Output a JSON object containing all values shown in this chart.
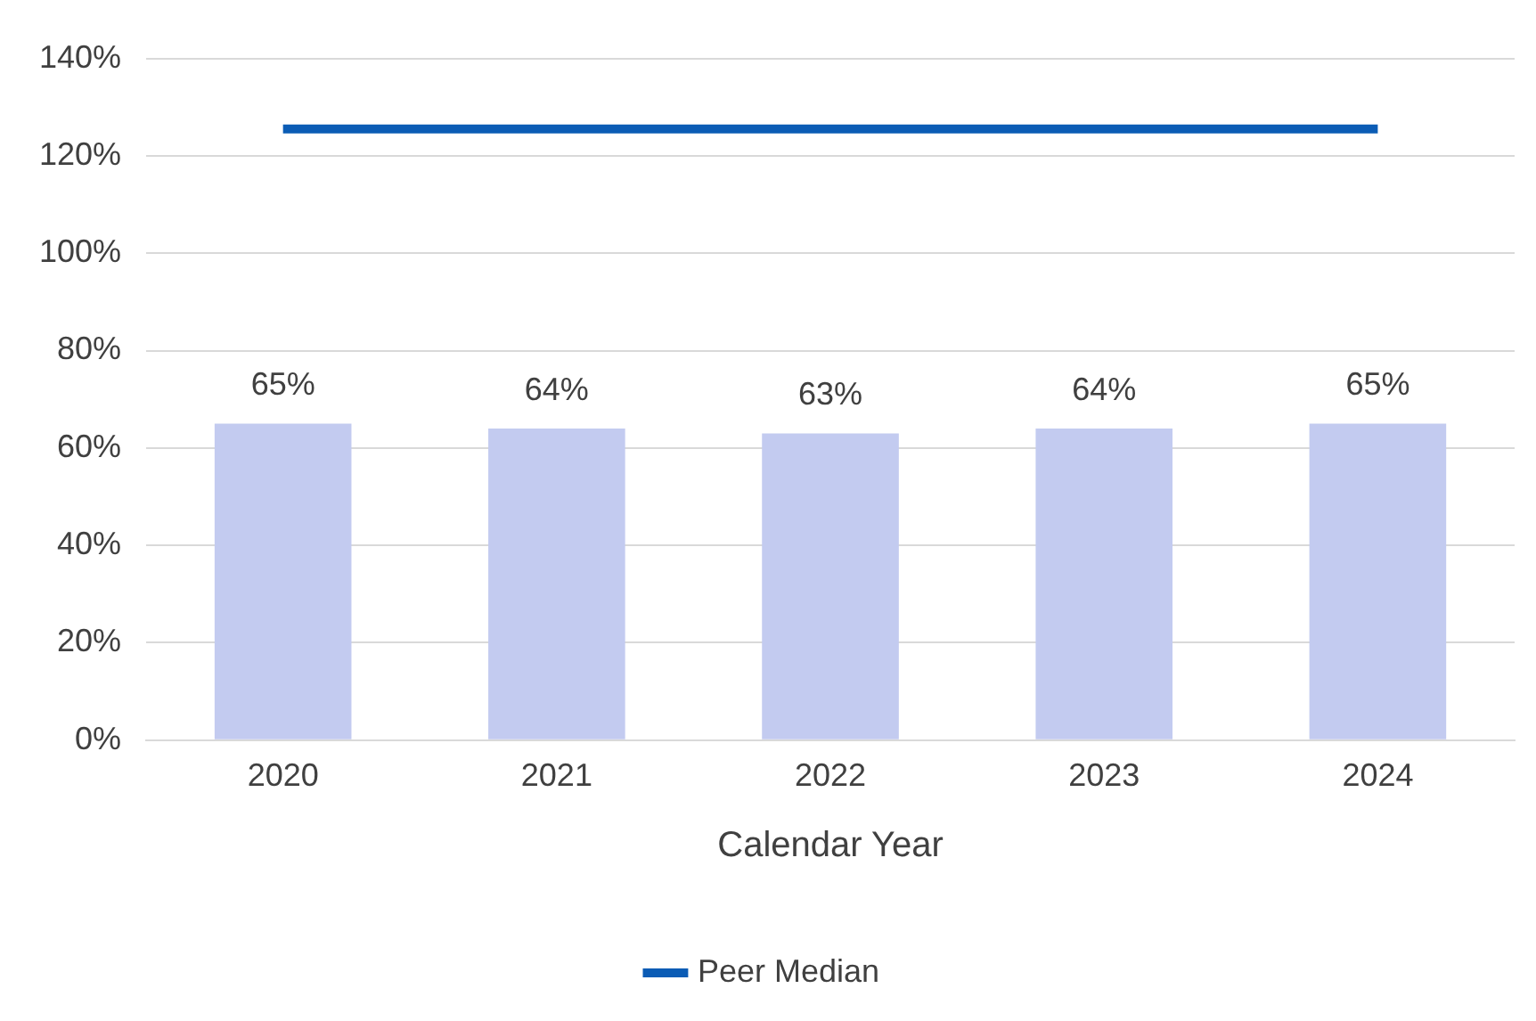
{
  "chart_data": {
    "type": "bar",
    "categories": [
      "2020",
      "2021",
      "2022",
      "2023",
      "2024"
    ],
    "xlabel": "Calendar Year",
    "series": [
      {
        "color": "#c3cbf0",
        "values": [
          65,
          64,
          63,
          64,
          65
        ],
        "value_labels": [
          "65%",
          "64%",
          "63%",
          "64%",
          "65%"
        ]
      },
      {
        "type": "line",
        "name": "Peer Median",
        "color": "#0b5cb5",
        "values": [
          125.5,
          125.5,
          125.5,
          125.5,
          125.5
        ],
        "marker": "none"
      }
    ],
    "ylim": [
      0,
      140
    ],
    "yticks": [
      {
        "value": 0,
        "label": "0%"
      },
      {
        "value": 20,
        "label": "20%"
      },
      {
        "value": 40,
        "label": "40%"
      },
      {
        "value": 60,
        "label": "60%"
      },
      {
        "value": 80,
        "label": "80%"
      },
      {
        "value": 100,
        "label": "100%"
      },
      {
        "value": 120,
        "label": "120%"
      },
      {
        "value": 140,
        "label": "140%"
      }
    ],
    "grid": "y",
    "legend": "bottom"
  }
}
